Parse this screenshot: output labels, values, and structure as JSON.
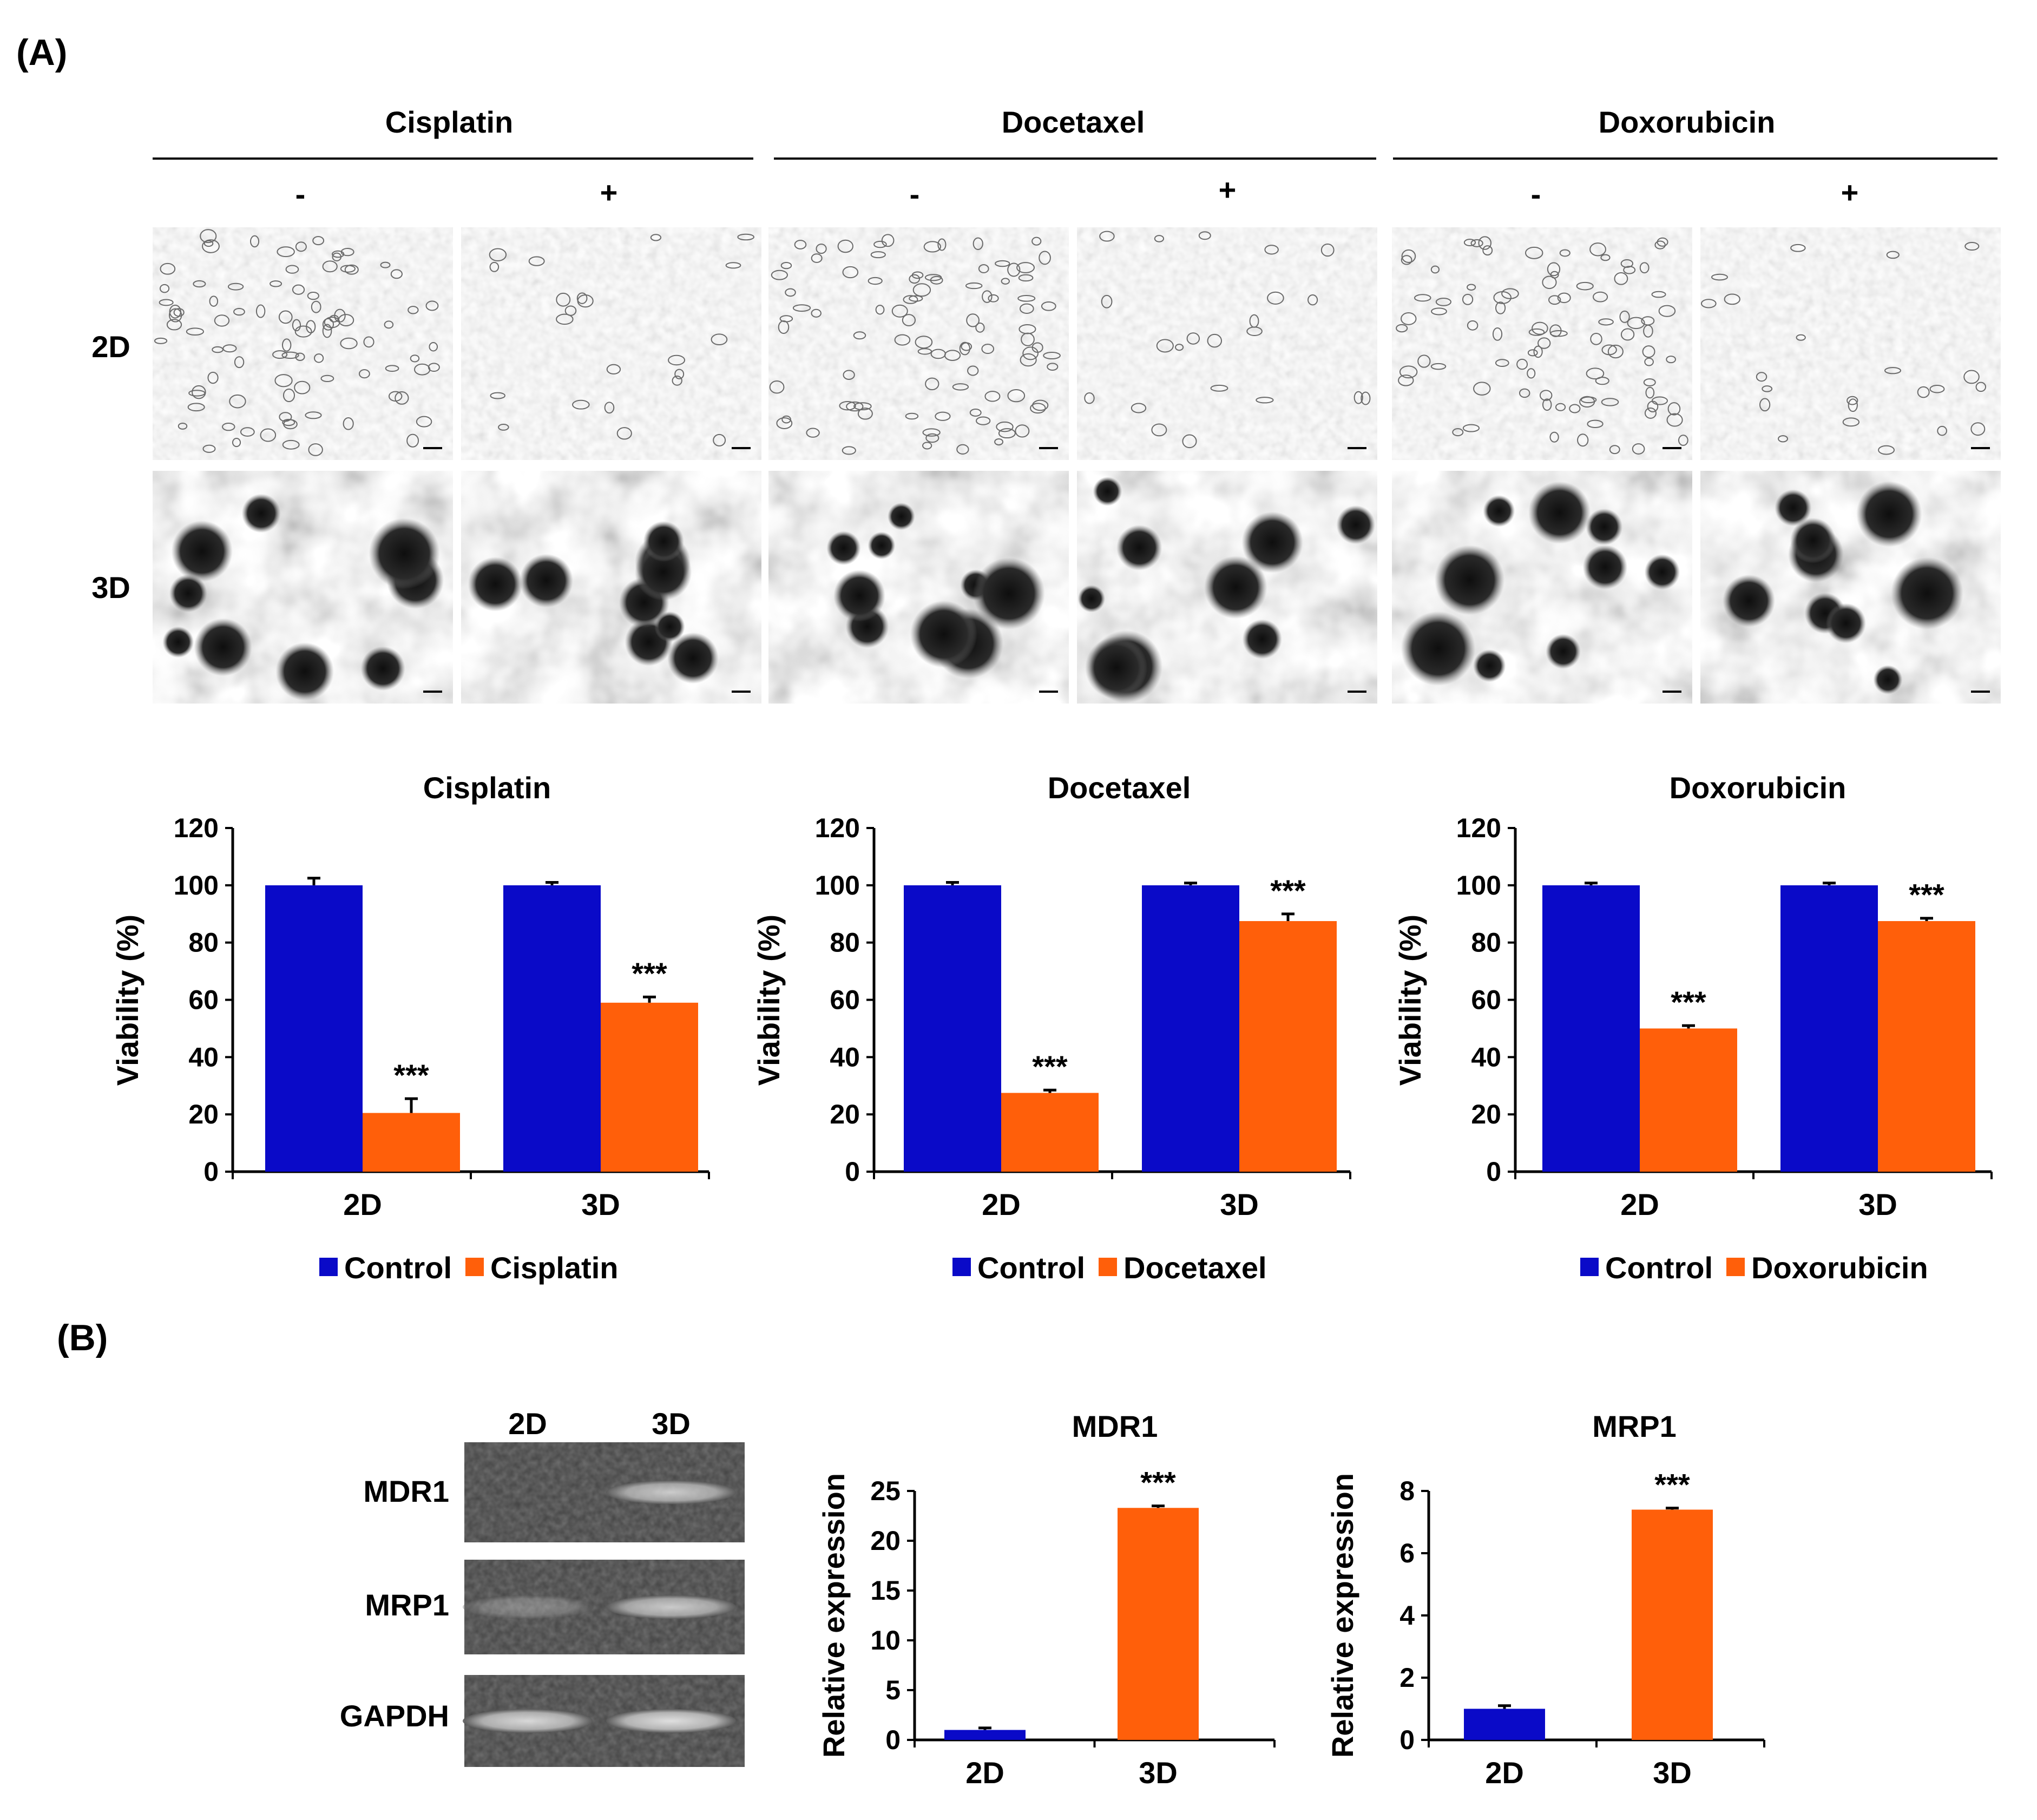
{
  "panel_a_label": "(A)",
  "panel_b_label": "(B)",
  "micrographs": {
    "drugs": [
      "Cisplatin",
      "Docetaxel",
      "Doxorubicin"
    ],
    "treatments": [
      "-",
      "+"
    ],
    "rows": [
      "2D",
      "3D"
    ]
  },
  "western": {
    "lanes": [
      "2D",
      "3D"
    ],
    "genes": [
      "MDR1",
      "MRP1",
      "GAPDH"
    ]
  },
  "colors": {
    "control": "#0a0ac8",
    "treated": "#ff5f0a",
    "axis": "#000000",
    "gel_bg": "#424242",
    "band": "#d4d4d4"
  },
  "chart_data": [
    {
      "type": "bar",
      "title": "Cisplatin",
      "xlabel": "",
      "ylabel": "Viability (%)",
      "categories": [
        "2D",
        "3D"
      ],
      "ylim": [
        0,
        120
      ],
      "yticks": [
        0,
        20,
        40,
        60,
        80,
        100,
        120
      ],
      "series": [
        {
          "name": "Control",
          "values": [
            100,
            100
          ],
          "errors": [
            2.5,
            1
          ]
        },
        {
          "name": "Cisplatin",
          "values": [
            20.5,
            59
          ],
          "errors": [
            5,
            2
          ]
        }
      ],
      "annotations": [
        {
          "category": "2D",
          "series": "Cisplatin",
          "text": "***"
        },
        {
          "category": "3D",
          "series": "Cisplatin",
          "text": "***"
        }
      ],
      "legend": "bottom"
    },
    {
      "type": "bar",
      "title": "Docetaxel",
      "xlabel": "",
      "ylabel": "Viability (%)",
      "categories": [
        "2D",
        "3D"
      ],
      "ylim": [
        0,
        120
      ],
      "yticks": [
        0,
        20,
        40,
        60,
        80,
        100,
        120
      ],
      "series": [
        {
          "name": "Control",
          "values": [
            100,
            100
          ],
          "errors": [
            1,
            0.8
          ]
        },
        {
          "name": "Docetaxel",
          "values": [
            27.5,
            87.5
          ],
          "errors": [
            1,
            2.5
          ]
        }
      ],
      "annotations": [
        {
          "category": "2D",
          "series": "Docetaxel",
          "text": "***"
        },
        {
          "category": "3D",
          "series": "Docetaxel",
          "text": "***"
        }
      ],
      "legend": "bottom"
    },
    {
      "type": "bar",
      "title": "Doxorubicin",
      "xlabel": "",
      "ylabel": "Viability (%)",
      "categories": [
        "2D",
        "3D"
      ],
      "ylim": [
        0,
        120
      ],
      "yticks": [
        0,
        20,
        40,
        60,
        80,
        100,
        120
      ],
      "series": [
        {
          "name": "Control",
          "values": [
            100,
            100
          ],
          "errors": [
            0.8,
            0.8
          ]
        },
        {
          "name": "Doxorubicin",
          "values": [
            50,
            87.5
          ],
          "errors": [
            1,
            1
          ]
        }
      ],
      "annotations": [
        {
          "category": "2D",
          "series": "Doxorubicin",
          "text": "***"
        },
        {
          "category": "3D",
          "series": "Doxorubicin",
          "text": "***"
        }
      ],
      "legend": "bottom"
    },
    {
      "type": "bar",
      "title": "MDR1",
      "xlabel": "",
      "ylabel": "Relative expression",
      "categories": [
        "2D",
        "3D"
      ],
      "ylim": [
        0,
        25
      ],
      "yticks": [
        0,
        5,
        10,
        15,
        20,
        25
      ],
      "series": [
        {
          "name": "Relative expression",
          "values": [
            1,
            23.3
          ],
          "errors": [
            0.2,
            0.2
          ]
        }
      ],
      "bar_series_color_by_category": [
        "control",
        "treated"
      ],
      "annotations": [
        {
          "category": "3D",
          "series": "Relative expression",
          "text": "***"
        }
      ],
      "legend": "none"
    },
    {
      "type": "bar",
      "title": "MRP1",
      "xlabel": "",
      "ylabel": "Relative expression",
      "categories": [
        "2D",
        "3D"
      ],
      "ylim": [
        0,
        8
      ],
      "yticks": [
        0,
        2,
        4,
        6,
        8
      ],
      "series": [
        {
          "name": "Relative expression",
          "values": [
            1,
            7.4
          ],
          "errors": [
            0.1,
            0.05
          ]
        }
      ],
      "bar_series_color_by_category": [
        "control",
        "treated"
      ],
      "annotations": [
        {
          "category": "3D",
          "series": "Relative expression",
          "text": "***"
        }
      ],
      "legend": "none"
    }
  ]
}
